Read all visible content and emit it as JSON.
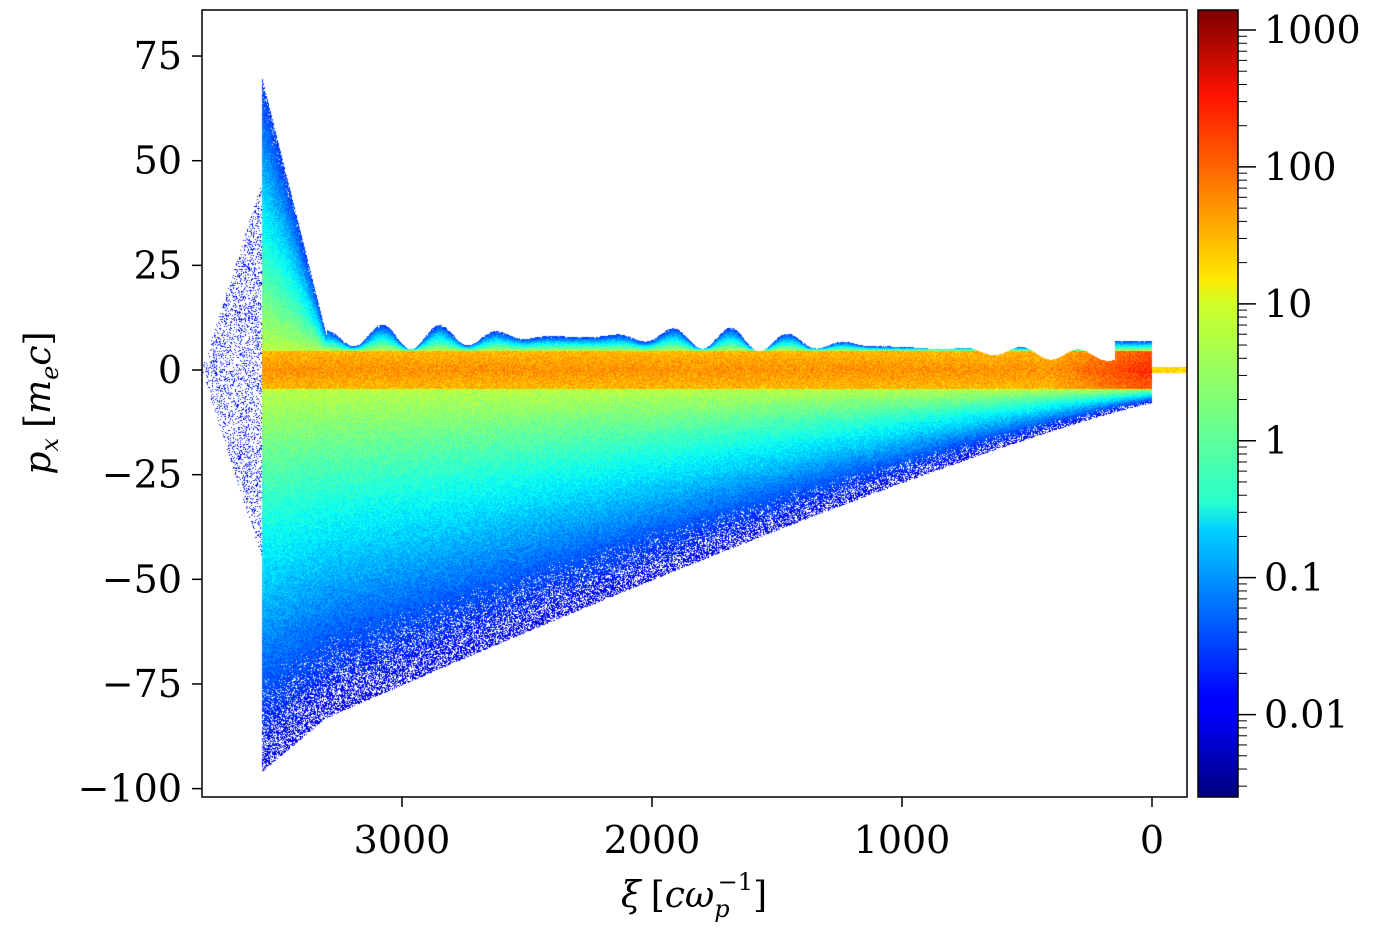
{
  "chart_data": {
    "type": "heatmap",
    "title": "",
    "xlabel": {
      "base": "ξ",
      "bracket_open": "[",
      "unit_main": "cω",
      "unit_sub": "p",
      "unit_sup": "−1",
      "bracket_close": "]"
    },
    "ylabel": {
      "base": "p",
      "base_sub": "x",
      "bracket_open": "[",
      "unit_main": "m",
      "unit_sub": "e",
      "unit_tail": "c",
      "bracket_close": "]"
    },
    "x_axis_inverted": true,
    "xlim": [
      3800,
      -140
    ],
    "ylim": [
      -102,
      86
    ],
    "xticks": [
      {
        "value": 3000,
        "label": "3000"
      },
      {
        "value": 2000,
        "label": "2000"
      },
      {
        "value": 1000,
        "label": "1000"
      },
      {
        "value": 0,
        "label": "0"
      }
    ],
    "yticks": [
      {
        "value": 75,
        "label": "75"
      },
      {
        "value": 50,
        "label": "50"
      },
      {
        "value": 25,
        "label": "25"
      },
      {
        "value": 0,
        "label": "0"
      },
      {
        "value": -25,
        "label": "−25"
      },
      {
        "value": -50,
        "label": "−50"
      },
      {
        "value": -75,
        "label": "−75"
      },
      {
        "value": -100,
        "label": "−100"
      }
    ],
    "grid": false,
    "colorbar": {
      "scale": "log",
      "range": [
        0.0025,
        1400
      ],
      "colormap": "jet",
      "ticks": [
        {
          "value": 1000,
          "label": "1000"
        },
        {
          "value": 100,
          "label": "100"
        },
        {
          "value": 10,
          "label": "10"
        },
        {
          "value": 1,
          "label": "1"
        },
        {
          "value": 0.1,
          "label": "0.1"
        },
        {
          "value": 0.01,
          "label": "0.01"
        }
      ]
    }
  }
}
